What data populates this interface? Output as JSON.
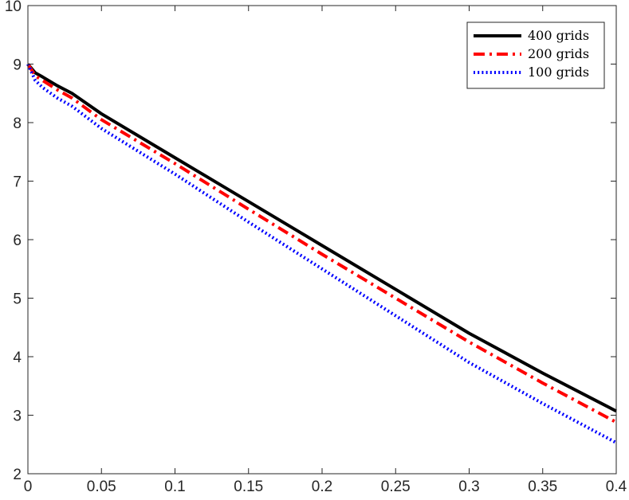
{
  "chart_data": {
    "type": "line",
    "title": "",
    "xlabel": "",
    "ylabel": "",
    "xlim": [
      0,
      0.4
    ],
    "ylim": [
      2,
      10
    ],
    "xticks": [
      "0",
      "0.05",
      "0.1",
      "0.15",
      "0.2",
      "0.25",
      "0.3",
      "0.35",
      "0.4"
    ],
    "yticks": [
      "2",
      "3",
      "4",
      "5",
      "6",
      "7",
      "8",
      "9",
      "10"
    ],
    "grid": false,
    "legend_position": "top-right",
    "series": [
      {
        "name": "400 grids",
        "color": "#000000",
        "style": "solid",
        "x": [
          0,
          0.005,
          0.01,
          0.02,
          0.03,
          0.05,
          0.1,
          0.15,
          0.2,
          0.25,
          0.3,
          0.35,
          0.4
        ],
        "y": [
          9.0,
          8.85,
          8.78,
          8.63,
          8.5,
          8.15,
          7.4,
          6.65,
          5.9,
          5.15,
          4.4,
          3.72,
          3.07
        ]
      },
      {
        "name": "200 grids",
        "color": "#ff0000",
        "style": "dashdot",
        "x": [
          0,
          0.005,
          0.01,
          0.02,
          0.03,
          0.05,
          0.1,
          0.15,
          0.2,
          0.25,
          0.3,
          0.35,
          0.4
        ],
        "y": [
          9.0,
          8.8,
          8.72,
          8.56,
          8.42,
          8.05,
          7.3,
          6.52,
          5.75,
          5.0,
          4.25,
          3.55,
          2.88
        ]
      },
      {
        "name": "100 grids",
        "color": "#0000ff",
        "style": "dotted",
        "x": [
          0,
          0.005,
          0.01,
          0.02,
          0.03,
          0.05,
          0.1,
          0.15,
          0.2,
          0.25,
          0.3,
          0.35,
          0.4
        ],
        "y": [
          9.0,
          8.72,
          8.6,
          8.42,
          8.28,
          7.9,
          7.12,
          6.3,
          5.5,
          4.7,
          3.9,
          3.2,
          2.53
        ]
      }
    ]
  }
}
